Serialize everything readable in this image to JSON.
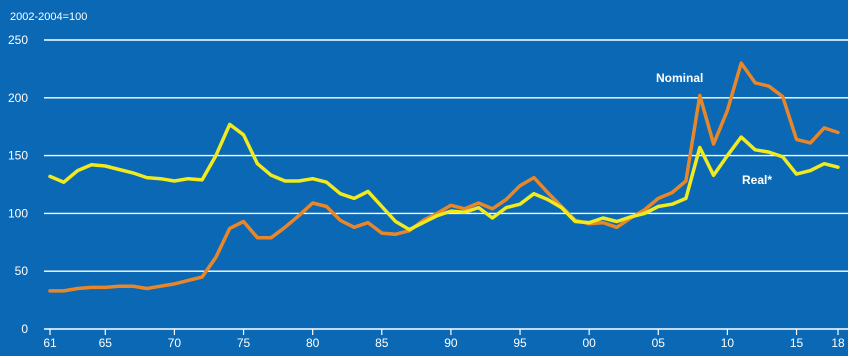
{
  "chart_data": {
    "type": "line",
    "unit_label": "2002-2004=100",
    "ylim": [
      0,
      250
    ],
    "yticks": [
      0,
      50,
      100,
      150,
      200,
      250
    ],
    "xlim": [
      1961,
      2018
    ],
    "xticks": [
      {
        "value": 1961,
        "label": "61"
      },
      {
        "value": 1965,
        "label": "65"
      },
      {
        "value": 1970,
        "label": "70"
      },
      {
        "value": 1975,
        "label": "75"
      },
      {
        "value": 1980,
        "label": "80"
      },
      {
        "value": 1985,
        "label": "85"
      },
      {
        "value": 1990,
        "label": "90"
      },
      {
        "value": 1995,
        "label": "95"
      },
      {
        "value": 2000,
        "label": "00"
      },
      {
        "value": 2005,
        "label": "05"
      },
      {
        "value": 2010,
        "label": "10"
      },
      {
        "value": 2015,
        "label": "15"
      },
      {
        "value": 2018,
        "label": "18"
      }
    ],
    "grid": true,
    "x": [
      1961,
      1962,
      1963,
      1964,
      1965,
      1966,
      1967,
      1968,
      1969,
      1970,
      1971,
      1972,
      1973,
      1974,
      1975,
      1976,
      1977,
      1978,
      1979,
      1980,
      1981,
      1982,
      1983,
      1984,
      1985,
      1986,
      1987,
      1988,
      1989,
      1990,
      1991,
      1992,
      1993,
      1994,
      1995,
      1996,
      1997,
      1998,
      1999,
      2000,
      2001,
      2002,
      2003,
      2004,
      2005,
      2006,
      2007,
      2008,
      2009,
      2010,
      2011,
      2012,
      2013,
      2014,
      2015,
      2016,
      2017,
      2018
    ],
    "series": [
      {
        "name": "Nominal",
        "color": "#e8872a",
        "values": [
          33,
          33,
          35,
          36,
          36,
          37,
          37,
          35,
          37,
          39,
          42,
          45,
          62,
          87,
          93,
          79,
          79,
          88,
          98,
          109,
          106,
          94,
          88,
          92,
          83,
          82,
          85,
          94,
          100,
          107,
          104,
          109,
          104,
          112,
          124,
          131,
          118,
          106,
          94,
          91,
          92,
          88,
          96,
          103,
          113,
          118,
          128,
          202,
          160,
          189,
          230,
          213,
          210,
          201,
          164,
          161,
          174,
          170
        ]
      },
      {
        "name": "Real*",
        "color": "#f0ea1e",
        "values": [
          132,
          127,
          137,
          142,
          141,
          138,
          135,
          131,
          130,
          128,
          130,
          129,
          150,
          177,
          168,
          143,
          133,
          128,
          128,
          130,
          127,
          117,
          113,
          119,
          106,
          93,
          86,
          92,
          98,
          102,
          101,
          105,
          96,
          105,
          108,
          117,
          112,
          105,
          93,
          92,
          96,
          93,
          97,
          100,
          106,
          108,
          113,
          157,
          133,
          150,
          166,
          155,
          153,
          149,
          134,
          137,
          143,
          140
        ]
      }
    ],
    "labels": {
      "nominal": "Nominal",
      "real": "Real*"
    }
  }
}
